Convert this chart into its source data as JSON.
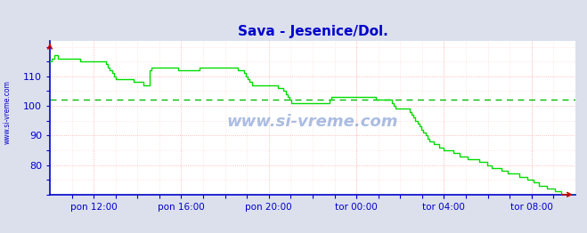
{
  "title": "Sava - Jesenice/Dol.",
  "title_color": "#0000cc",
  "bg_color": "#dce0ec",
  "plot_bg_color": "#ffffff",
  "line_color": "#00dd00",
  "avg_line_color": "#00bb00",
  "avg_line_value": 102.0,
  "grid_color": "#ffaaaa",
  "axis_color": "#0000cc",
  "tick_label_color": "#0000cc",
  "watermark_text": "www.si-vreme.com",
  "side_text": "www.si-vreme.com",
  "legend_color": "#00cc00",
  "ylim": [
    70,
    122
  ],
  "yticks": [
    80,
    90,
    100,
    110
  ],
  "x_tick_labels": [
    "pon 12:00",
    "pon 16:00",
    "pon 20:00",
    "tor 00:00",
    "tor 04:00",
    "tor 08:00"
  ],
  "x_tick_positions": [
    0.0833,
    0.25,
    0.4167,
    0.5833,
    0.75,
    0.9167
  ],
  "flow_data": [
    115,
    116,
    117,
    117,
    116,
    116,
    116,
    116,
    116,
    116,
    116,
    116,
    116,
    116,
    116,
    115,
    115,
    115,
    115,
    115,
    115,
    115,
    115,
    115,
    115,
    115,
    115,
    115,
    114,
    113,
    112,
    111,
    110,
    109,
    109,
    109,
    109,
    109,
    109,
    109,
    109,
    109,
    108,
    108,
    108,
    108,
    108,
    107,
    107,
    107,
    112,
    113,
    113,
    113,
    113,
    113,
    113,
    113,
    113,
    113,
    113,
    113,
    113,
    113,
    112,
    112,
    112,
    112,
    112,
    112,
    112,
    112,
    112,
    112,
    112,
    113,
    113,
    113,
    113,
    113,
    113,
    113,
    113,
    113,
    113,
    113,
    113,
    113,
    113,
    113,
    113,
    113,
    113,
    113,
    112,
    112,
    112,
    111,
    110,
    109,
    108,
    107,
    107,
    107,
    107,
    107,
    107,
    107,
    107,
    107,
    107,
    107,
    107,
    107,
    106,
    106,
    106,
    105,
    104,
    103,
    102,
    101,
    101,
    101,
    101,
    101,
    101,
    101,
    101,
    101,
    101,
    101,
    101,
    101,
    101,
    101,
    101,
    101,
    101,
    101,
    102,
    103,
    103,
    103,
    103,
    103,
    103,
    103,
    103,
    103,
    103,
    103,
    103,
    103,
    103,
    103,
    103,
    103,
    103,
    103,
    103,
    103,
    103,
    102,
    102,
    102,
    102,
    102,
    102,
    102,
    102,
    101,
    100,
    99,
    99,
    99,
    99,
    99,
    99,
    99,
    98,
    97,
    96,
    95,
    94,
    93,
    92,
    91,
    90,
    89,
    88,
    88,
    87,
    87,
    87,
    86,
    86,
    85,
    85,
    85,
    85,
    85,
    84,
    84,
    84,
    83,
    83,
    83,
    83,
    82,
    82,
    82,
    82,
    82,
    82,
    81,
    81,
    81,
    81,
    80,
    80,
    79,
    79,
    79,
    79,
    79,
    78,
    78,
    78,
    77,
    77,
    77,
    77,
    77,
    77,
    76,
    76,
    76,
    76,
    75,
    75,
    75,
    74,
    74,
    74,
    73,
    73,
    73,
    73,
    72,
    72,
    72,
    72,
    71,
    71,
    71,
    70,
    70,
    70,
    70,
    70,
    70,
    70,
    70
  ]
}
